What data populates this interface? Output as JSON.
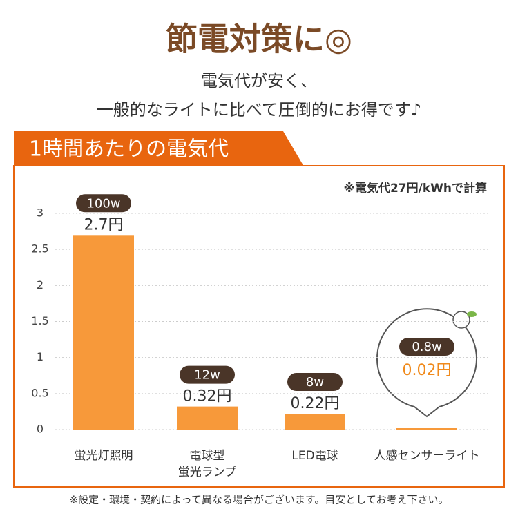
{
  "header": {
    "title": "節電対策に◎",
    "subtitle_lines": [
      "電気代が安く、",
      "一般的なライトに比べて圧倒的にお得です♪"
    ]
  },
  "banner": "1時間あたりの電気代",
  "note": "※電気代27円/kWhで計算",
  "footnote": "※設定・環境・契約によって異なる場合がございます。目安としてお考え下さい。",
  "chart_data": {
    "type": "bar",
    "categories": [
      [
        "蛍光灯照明"
      ],
      [
        "電球型",
        "蛍光ランプ"
      ],
      [
        "LED電球"
      ],
      [
        "人感センサーライト"
      ]
    ],
    "values": [
      2.7,
      0.32,
      0.22,
      0.02
    ],
    "value_labels": [
      "2.7円",
      "0.32円",
      "0.22円",
      "0.02円"
    ],
    "wattage_labels": [
      "100w",
      "12w",
      "8w",
      "0.8w"
    ],
    "color": "#f7993a",
    "ylim": [
      0,
      3
    ],
    "yticks": [
      0,
      0.5,
      1,
      1.5,
      2,
      2.5,
      3
    ],
    "grid": true
  }
}
